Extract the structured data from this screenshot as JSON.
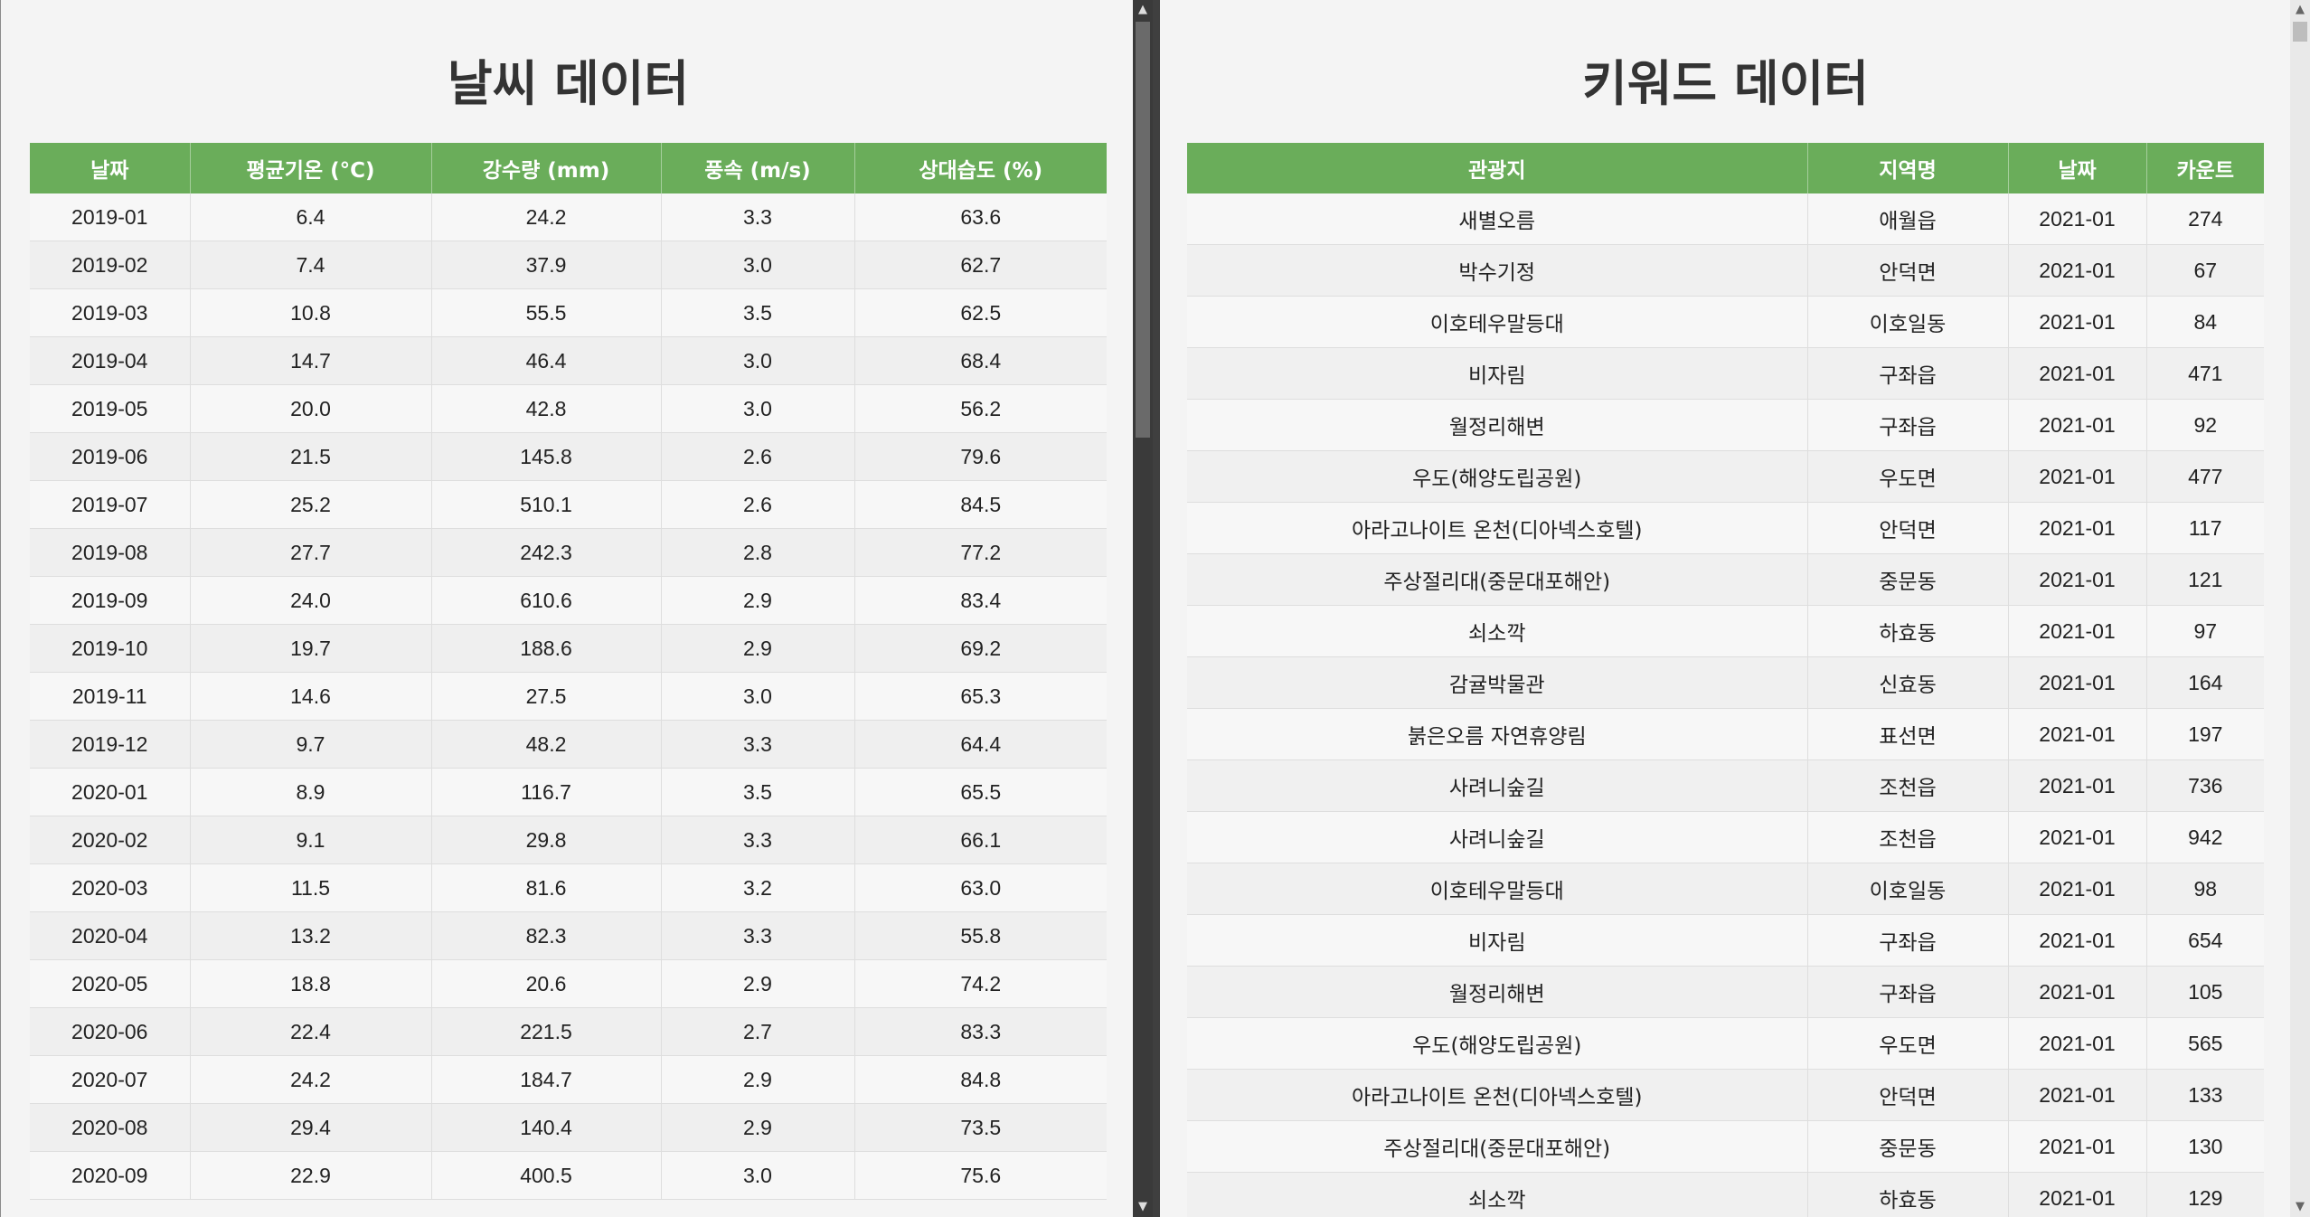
{
  "weather": {
    "title": "날씨 데이터",
    "headers": [
      "날짜",
      "평균기온 (°C)",
      "강수량 (mm)",
      "풍속 (m/s)",
      "상대습도 (%)"
    ],
    "rows": [
      [
        "2019-01",
        "6.4",
        "24.2",
        "3.3",
        "63.6"
      ],
      [
        "2019-02",
        "7.4",
        "37.9",
        "3.0",
        "62.7"
      ],
      [
        "2019-03",
        "10.8",
        "55.5",
        "3.5",
        "62.5"
      ],
      [
        "2019-04",
        "14.7",
        "46.4",
        "3.0",
        "68.4"
      ],
      [
        "2019-05",
        "20.0",
        "42.8",
        "3.0",
        "56.2"
      ],
      [
        "2019-06",
        "21.5",
        "145.8",
        "2.6",
        "79.6"
      ],
      [
        "2019-07",
        "25.2",
        "510.1",
        "2.6",
        "84.5"
      ],
      [
        "2019-08",
        "27.7",
        "242.3",
        "2.8",
        "77.2"
      ],
      [
        "2019-09",
        "24.0",
        "610.6",
        "2.9",
        "83.4"
      ],
      [
        "2019-10",
        "19.7",
        "188.6",
        "2.9",
        "69.2"
      ],
      [
        "2019-11",
        "14.6",
        "27.5",
        "3.0",
        "65.3"
      ],
      [
        "2019-12",
        "9.7",
        "48.2",
        "3.3",
        "64.4"
      ],
      [
        "2020-01",
        "8.9",
        "116.7",
        "3.5",
        "65.5"
      ],
      [
        "2020-02",
        "9.1",
        "29.8",
        "3.3",
        "66.1"
      ],
      [
        "2020-03",
        "11.5",
        "81.6",
        "3.2",
        "63.0"
      ],
      [
        "2020-04",
        "13.2",
        "82.3",
        "3.3",
        "55.8"
      ],
      [
        "2020-05",
        "18.8",
        "20.6",
        "2.9",
        "74.2"
      ],
      [
        "2020-06",
        "22.4",
        "221.5",
        "2.7",
        "83.3"
      ],
      [
        "2020-07",
        "24.2",
        "184.7",
        "2.9",
        "84.8"
      ],
      [
        "2020-08",
        "29.4",
        "140.4",
        "2.9",
        "73.5"
      ],
      [
        "2020-09",
        "22.9",
        "400.5",
        "3.0",
        "75.6"
      ]
    ]
  },
  "keywords": {
    "title": "키워드 데이터",
    "headers": [
      "관광지",
      "지역명",
      "날짜",
      "카운트"
    ],
    "rows": [
      [
        "새별오름",
        "애월읍",
        "2021-01",
        "274"
      ],
      [
        "박수기정",
        "안덕면",
        "2021-01",
        "67"
      ],
      [
        "이호테우말등대",
        "이호일동",
        "2021-01",
        "84"
      ],
      [
        "비자림",
        "구좌읍",
        "2021-01",
        "471"
      ],
      [
        "월정리해변",
        "구좌읍",
        "2021-01",
        "92"
      ],
      [
        "우도(해양도립공원)",
        "우도면",
        "2021-01",
        "477"
      ],
      [
        "아라고나이트 온천(디아넥스호텔)",
        "안덕면",
        "2021-01",
        "117"
      ],
      [
        "주상절리대(중문대포해안)",
        "중문동",
        "2021-01",
        "121"
      ],
      [
        "쇠소깍",
        "하효동",
        "2021-01",
        "97"
      ],
      [
        "감귤박물관",
        "신효동",
        "2021-01",
        "164"
      ],
      [
        "붉은오름 자연휴양림",
        "표선면",
        "2021-01",
        "197"
      ],
      [
        "사려니숲길",
        "조천읍",
        "2021-01",
        "736"
      ],
      [
        "사려니숲길",
        "조천읍",
        "2021-01",
        "942"
      ],
      [
        "이호테우말등대",
        "이호일동",
        "2021-01",
        "98"
      ],
      [
        "비자림",
        "구좌읍",
        "2021-01",
        "654"
      ],
      [
        "월정리해변",
        "구좌읍",
        "2021-01",
        "105"
      ],
      [
        "우도(해양도립공원)",
        "우도면",
        "2021-01",
        "565"
      ],
      [
        "아라고나이트 온천(디아넥스호텔)",
        "안덕면",
        "2021-01",
        "133"
      ],
      [
        "주상절리대(중문대포해안)",
        "중문동",
        "2021-01",
        "130"
      ],
      [
        "쇠소깍",
        "하효동",
        "2021-01",
        "129"
      ]
    ]
  },
  "scrollbars": {
    "left_arrow_up": "▲",
    "left_arrow_down": "▼",
    "right_arrow_up": "▲",
    "right_arrow_down": "▼"
  },
  "colors": {
    "header_green": "#6aad5a"
  }
}
